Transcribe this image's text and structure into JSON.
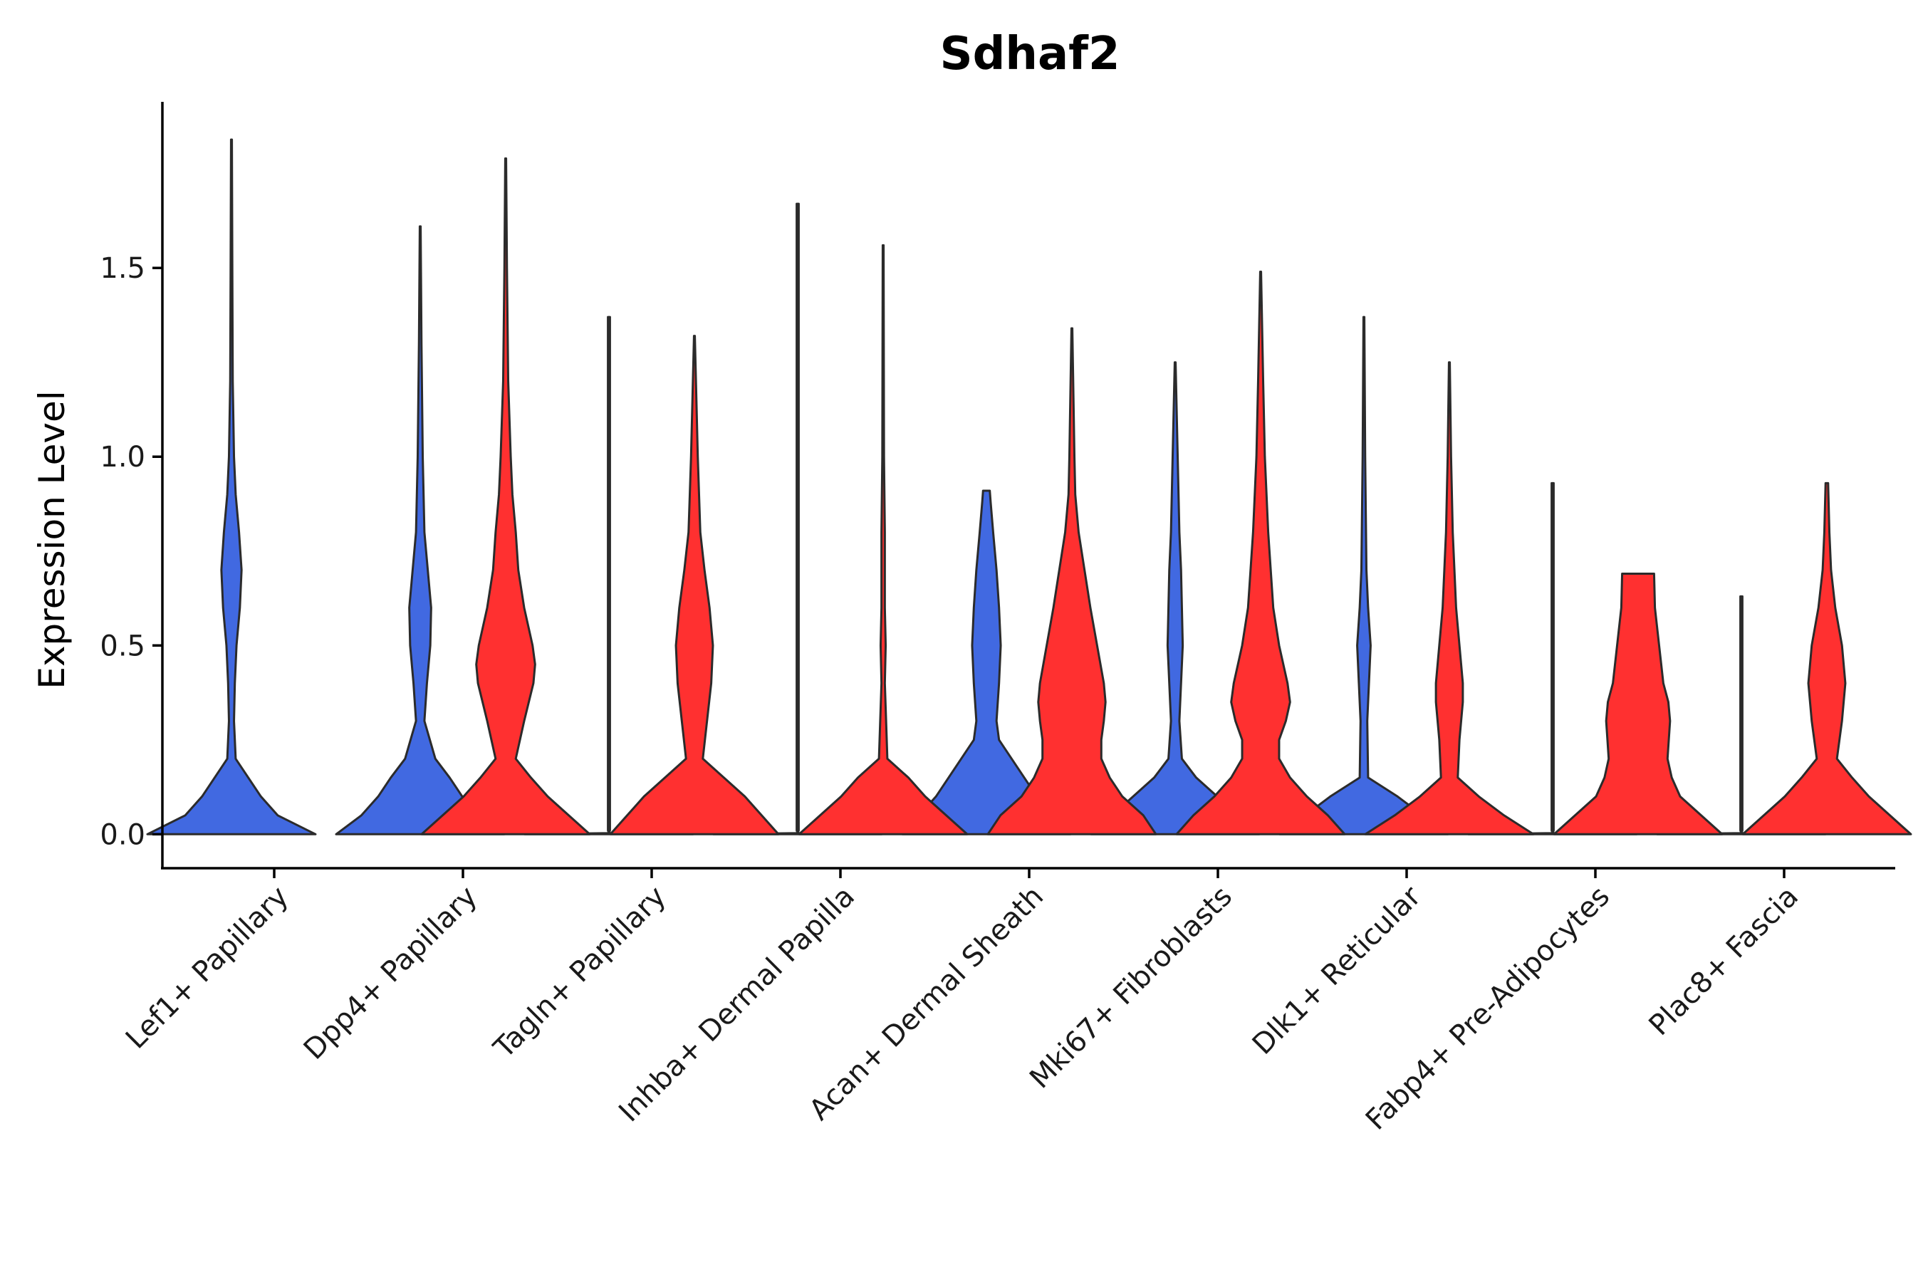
{
  "chart_data": {
    "type": "violin",
    "title": "Sdhaf2",
    "xlabel": "",
    "ylabel": "Expression Level",
    "ylim": [
      -0.09,
      1.94
    ],
    "yticks": [
      0.0,
      0.5,
      1.0,
      1.5
    ],
    "ytick_labels": [
      "0.0",
      "0.5",
      "1.0",
      "1.5"
    ],
    "grid": false,
    "legend": "none",
    "categories": [
      "Lef1+ Papillary",
      "Dpp4+ Papillary",
      "Tagln+ Papillary",
      "Inhba+ Dermal Papilla",
      "Acan+ Dermal Sheath",
      "Mki67+ Fibroblasts",
      "Dlk1+ Reticular",
      "Fabp4+ Pre-Adipocytes",
      "Plac8+ Fascia"
    ],
    "series": [
      {
        "name": "blue group",
        "color": "#4169E1",
        "violins": [
          {
            "category": "Lef1+ Papillary",
            "max": 1.84,
            "profile": [
              [
                0.0,
                1.0
              ],
              [
                0.05,
                0.55
              ],
              [
                0.1,
                0.35
              ],
              [
                0.15,
                0.2
              ],
              [
                0.2,
                0.05
              ],
              [
                0.3,
                0.03
              ],
              [
                0.4,
                0.04
              ],
              [
                0.5,
                0.06
              ],
              [
                0.6,
                0.1
              ],
              [
                0.7,
                0.12
              ],
              [
                0.8,
                0.09
              ],
              [
                0.9,
                0.05
              ],
              [
                1.0,
                0.03
              ],
              [
                1.2,
                0.015
              ],
              [
                1.5,
                0.01
              ],
              [
                1.84,
                0.005
              ]
            ]
          },
          {
            "category": "Dpp4+ Papillary",
            "max": 1.61,
            "profile": [
              [
                0.0,
                1.0
              ],
              [
                0.05,
                0.7
              ],
              [
                0.1,
                0.5
              ],
              [
                0.15,
                0.35
              ],
              [
                0.2,
                0.18
              ],
              [
                0.3,
                0.05
              ],
              [
                0.4,
                0.08
              ],
              [
                0.5,
                0.12
              ],
              [
                0.6,
                0.13
              ],
              [
                0.7,
                0.09
              ],
              [
                0.8,
                0.05
              ],
              [
                1.0,
                0.03
              ],
              [
                1.3,
                0.015
              ],
              [
                1.61,
                0.005
              ]
            ]
          },
          {
            "category": "Tagln+ Papillary",
            "max": 1.37,
            "profile": [
              [
                0.0,
                1.0
              ],
              [
                0.003,
                0.0
              ],
              [
                0.01,
                0.012
              ],
              [
                1.37,
                0.012
              ]
            ]
          },
          {
            "category": "Inhba+ Dermal Papilla",
            "max": 1.67,
            "profile": [
              [
                0.0,
                1.0
              ],
              [
                0.003,
                0.0
              ],
              [
                0.01,
                0.012
              ],
              [
                1.67,
                0.012
              ]
            ]
          },
          {
            "category": "Acan+ Dermal Sheath",
            "max": 0.91,
            "profile": [
              [
                0.0,
                1.0
              ],
              [
                0.05,
                0.8
              ],
              [
                0.1,
                0.6
              ],
              [
                0.15,
                0.45
              ],
              [
                0.2,
                0.3
              ],
              [
                0.25,
                0.15
              ],
              [
                0.3,
                0.12
              ],
              [
                0.4,
                0.15
              ],
              [
                0.5,
                0.17
              ],
              [
                0.6,
                0.15
              ],
              [
                0.7,
                0.12
              ],
              [
                0.8,
                0.08
              ],
              [
                0.88,
                0.05
              ],
              [
                0.91,
                0.04
              ]
            ]
          },
          {
            "category": "Mki67+ Fibroblasts",
            "max": 1.25,
            "profile": [
              [
                0.0,
                1.0
              ],
              [
                0.05,
                0.75
              ],
              [
                0.1,
                0.5
              ],
              [
                0.15,
                0.25
              ],
              [
                0.2,
                0.08
              ],
              [
                0.3,
                0.05
              ],
              [
                0.4,
                0.07
              ],
              [
                0.5,
                0.09
              ],
              [
                0.6,
                0.08
              ],
              [
                0.7,
                0.07
              ],
              [
                0.8,
                0.05
              ],
              [
                1.0,
                0.03
              ],
              [
                1.25,
                0.005
              ]
            ]
          },
          {
            "category": "Dlk1+ Reticular",
            "max": 1.37,
            "profile": [
              [
                0.0,
                1.0
              ],
              [
                0.05,
                0.7
              ],
              [
                0.1,
                0.4
              ],
              [
                0.15,
                0.05
              ],
              [
                0.3,
                0.04
              ],
              [
                0.4,
                0.06
              ],
              [
                0.5,
                0.08
              ],
              [
                0.6,
                0.05
              ],
              [
                0.7,
                0.03
              ],
              [
                1.0,
                0.015
              ],
              [
                1.37,
                0.005
              ]
            ]
          },
          {
            "category": "Fabp4+ Pre-Adipocytes",
            "max": 0.93,
            "profile": [
              [
                0.0,
                1.0
              ],
              [
                0.003,
                0.0
              ],
              [
                0.01,
                0.012
              ],
              [
                0.93,
                0.012
              ]
            ]
          },
          {
            "category": "Plac8+ Fascia",
            "max": 0.63,
            "profile": [
              [
                0.0,
                1.0
              ],
              [
                0.003,
                0.0
              ],
              [
                0.01,
                0.012
              ],
              [
                0.63,
                0.012
              ]
            ]
          }
        ]
      },
      {
        "name": "red group",
        "color": "#FF3030",
        "violins": [
          {
            "category": "Dpp4+ Papillary",
            "max": 1.79,
            "profile": [
              [
                0.0,
                1.0
              ],
              [
                0.05,
                0.75
              ],
              [
                0.1,
                0.5
              ],
              [
                0.15,
                0.3
              ],
              [
                0.2,
                0.12
              ],
              [
                0.3,
                0.22
              ],
              [
                0.4,
                0.33
              ],
              [
                0.45,
                0.35
              ],
              [
                0.5,
                0.32
              ],
              [
                0.6,
                0.22
              ],
              [
                0.7,
                0.15
              ],
              [
                0.8,
                0.12
              ],
              [
                0.9,
                0.08
              ],
              [
                1.0,
                0.06
              ],
              [
                1.2,
                0.03
              ],
              [
                1.5,
                0.015
              ],
              [
                1.79,
                0.005
              ]
            ]
          },
          {
            "category": "Tagln+ Papillary",
            "max": 1.32,
            "profile": [
              [
                0.0,
                1.0
              ],
              [
                0.05,
                0.8
              ],
              [
                0.1,
                0.6
              ],
              [
                0.15,
                0.35
              ],
              [
                0.2,
                0.1
              ],
              [
                0.3,
                0.15
              ],
              [
                0.4,
                0.2
              ],
              [
                0.5,
                0.22
              ],
              [
                0.6,
                0.18
              ],
              [
                0.7,
                0.12
              ],
              [
                0.8,
                0.07
              ],
              [
                1.0,
                0.04
              ],
              [
                1.32,
                0.005
              ]
            ]
          },
          {
            "category": "Inhba+ Dermal Papilla",
            "max": 1.56,
            "profile": [
              [
                0.0,
                1.0
              ],
              [
                0.05,
                0.75
              ],
              [
                0.1,
                0.5
              ],
              [
                0.15,
                0.3
              ],
              [
                0.2,
                0.05
              ],
              [
                0.4,
                0.02
              ],
              [
                0.5,
                0.03
              ],
              [
                0.6,
                0.02
              ],
              [
                0.8,
                0.02
              ],
              [
                1.0,
                0.01
              ],
              [
                1.56,
                0.005
              ]
            ]
          },
          {
            "category": "Acan+ Dermal Sheath",
            "max": 1.34,
            "profile": [
              [
                0.0,
                1.0
              ],
              [
                0.05,
                0.85
              ],
              [
                0.1,
                0.6
              ],
              [
                0.15,
                0.45
              ],
              [
                0.2,
                0.35
              ],
              [
                0.25,
                0.35
              ],
              [
                0.3,
                0.38
              ],
              [
                0.35,
                0.4
              ],
              [
                0.4,
                0.38
              ],
              [
                0.5,
                0.3
              ],
              [
                0.6,
                0.22
              ],
              [
                0.7,
                0.15
              ],
              [
                0.8,
                0.08
              ],
              [
                0.9,
                0.04
              ],
              [
                1.0,
                0.03
              ],
              [
                1.34,
                0.005
              ]
            ]
          },
          {
            "category": "Mki67+ Fibroblasts",
            "max": 1.49,
            "profile": [
              [
                0.0,
                1.0
              ],
              [
                0.05,
                0.8
              ],
              [
                0.1,
                0.55
              ],
              [
                0.15,
                0.35
              ],
              [
                0.2,
                0.22
              ],
              [
                0.25,
                0.22
              ],
              [
                0.3,
                0.3
              ],
              [
                0.35,
                0.35
              ],
              [
                0.4,
                0.32
              ],
              [
                0.5,
                0.22
              ],
              [
                0.6,
                0.15
              ],
              [
                0.7,
                0.12
              ],
              [
                0.8,
                0.09
              ],
              [
                1.0,
                0.05
              ],
              [
                1.2,
                0.03
              ],
              [
                1.49,
                0.005
              ]
            ]
          },
          {
            "category": "Dlk1+ Reticular",
            "max": 1.25,
            "profile": [
              [
                0.0,
                1.0
              ],
              [
                0.05,
                0.65
              ],
              [
                0.1,
                0.35
              ],
              [
                0.15,
                0.1
              ],
              [
                0.25,
                0.12
              ],
              [
                0.35,
                0.16
              ],
              [
                0.4,
                0.16
              ],
              [
                0.5,
                0.12
              ],
              [
                0.6,
                0.08
              ],
              [
                0.8,
                0.04
              ],
              [
                1.0,
                0.02
              ],
              [
                1.25,
                0.005
              ]
            ]
          },
          {
            "category": "Fabp4+ Pre-Adipocytes",
            "max": 0.69,
            "profile": [
              [
                0.0,
                1.0
              ],
              [
                0.05,
                0.75
              ],
              [
                0.1,
                0.5
              ],
              [
                0.15,
                0.4
              ],
              [
                0.2,
                0.35
              ],
              [
                0.3,
                0.38
              ],
              [
                0.35,
                0.36
              ],
              [
                0.4,
                0.3
              ],
              [
                0.5,
                0.25
              ],
              [
                0.6,
                0.2
              ],
              [
                0.69,
                0.19
              ]
            ]
          },
          {
            "category": "Plac8+ Fascia",
            "max": 0.93,
            "profile": [
              [
                0.0,
                1.0
              ],
              [
                0.05,
                0.75
              ],
              [
                0.1,
                0.5
              ],
              [
                0.15,
                0.3
              ],
              [
                0.2,
                0.12
              ],
              [
                0.3,
                0.18
              ],
              [
                0.4,
                0.22
              ],
              [
                0.5,
                0.18
              ],
              [
                0.6,
                0.1
              ],
              [
                0.7,
                0.05
              ],
              [
                0.8,
                0.03
              ],
              [
                0.93,
                0.015
              ]
            ]
          }
        ]
      }
    ]
  }
}
